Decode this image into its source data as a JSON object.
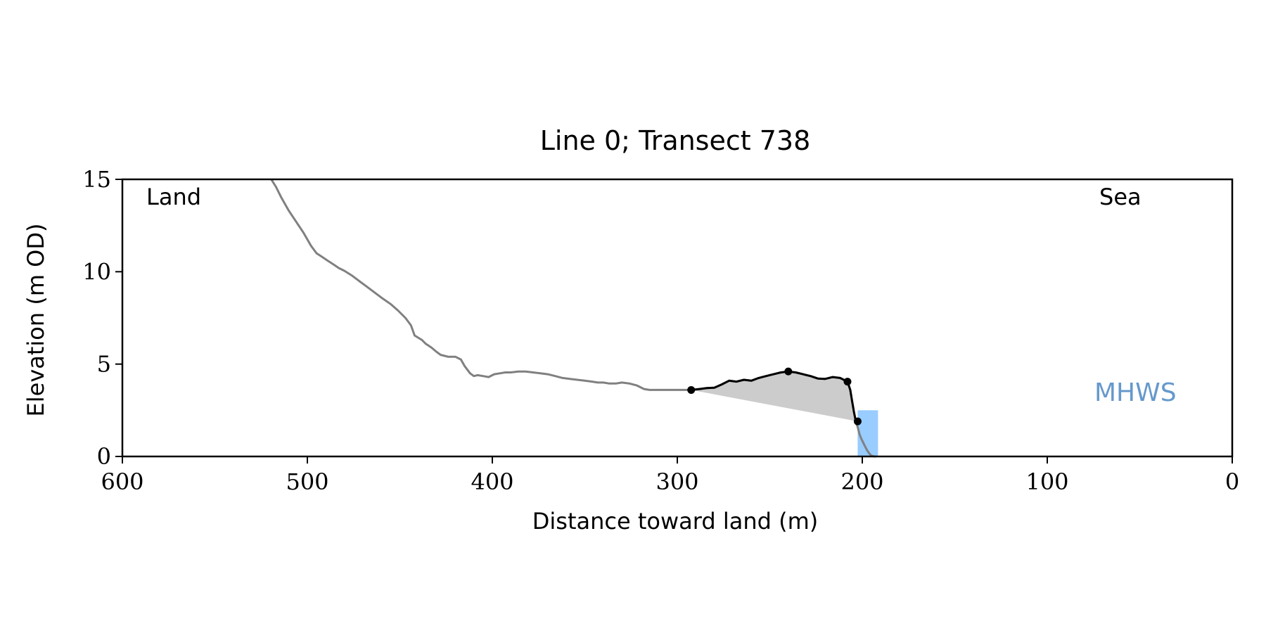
{
  "chart_data": {
    "type": "line",
    "title": "Line 0; Transect 738",
    "xlabel": "Distance toward land (m)",
    "ylabel": "Elevation (m OD)",
    "xlim": [
      600,
      0
    ],
    "ylim": [
      0,
      15
    ],
    "x_ticks": [
      600,
      500,
      400,
      300,
      200,
      100,
      0
    ],
    "y_ticks": [
      0,
      5,
      10,
      15
    ],
    "grid": false,
    "annotations": {
      "land": "Land",
      "sea": "Sea",
      "mhws": "MHWS"
    },
    "colors": {
      "profile": "#808080",
      "dune": "#000000",
      "fill": "#cccccc",
      "mhws_fill": "#99ccff",
      "mhws_text": "#6699cc"
    },
    "mhws_band": {
      "x": [
        202.5,
        191.5
      ],
      "y": [
        0,
        2.5
      ]
    },
    "series": [
      {
        "role": "profile",
        "x": [
          519.5,
          517,
          514,
          510,
          506,
          502,
          498,
          495,
          492,
          489,
          486,
          483,
          480,
          476,
          472,
          468,
          464,
          460,
          455,
          451,
          447,
          444,
          442,
          438,
          436,
          433,
          430,
          428,
          424,
          420,
          417,
          415,
          412,
          410,
          408,
          405,
          402,
          399,
          396,
          393,
          390,
          386,
          382,
          378,
          374,
          370,
          366,
          362,
          358,
          354,
          350,
          346,
          343,
          340,
          337,
          333,
          330,
          326,
          322,
          318,
          315,
          311,
          307,
          303,
          299,
          295,
          292,
          288,
          284,
          280,
          276,
          272,
          268,
          264,
          260,
          256,
          252,
          248,
          244,
          240,
          236,
          232,
          228,
          224,
          220,
          216,
          212,
          208,
          206.5,
          205.5,
          204.5,
          203.5,
          202.5,
          201.5,
          200.5,
          199.5,
          198.5,
          197.5,
          196.5,
          195.5,
          194.5,
          193.5,
          192.5
        ],
        "y": [
          15.0,
          14.6,
          14.0,
          13.3,
          12.7,
          12.1,
          11.4,
          11.0,
          10.8,
          10.6,
          10.4,
          10.2,
          10.05,
          9.8,
          9.5,
          9.2,
          8.9,
          8.6,
          8.25,
          7.9,
          7.5,
          7.1,
          6.55,
          6.3,
          6.1,
          5.9,
          5.65,
          5.5,
          5.4,
          5.4,
          5.25,
          4.9,
          4.5,
          4.35,
          4.4,
          4.35,
          4.3,
          4.45,
          4.5,
          4.55,
          4.55,
          4.6,
          4.6,
          4.55,
          4.5,
          4.45,
          4.35,
          4.25,
          4.2,
          4.15,
          4.1,
          4.05,
          4.0,
          4.0,
          3.95,
          3.95,
          4.0,
          3.95,
          3.85,
          3.65,
          3.6,
          3.6,
          3.6,
          3.6,
          3.6,
          3.6,
          3.6,
          3.65,
          3.7,
          3.72,
          3.9,
          4.1,
          4.05,
          4.15,
          4.1,
          4.25,
          4.35,
          4.45,
          4.55,
          4.6,
          4.55,
          4.45,
          4.35,
          4.22,
          4.2,
          4.3,
          4.25,
          4.05,
          3.6,
          3.0,
          2.4,
          1.9,
          1.6,
          1.2,
          0.95,
          0.75,
          0.55,
          0.35,
          0.2,
          0.08,
          0.02,
          0.0,
          0.0
        ]
      },
      {
        "role": "dune",
        "x": [
          292.5,
          288,
          284,
          280,
          276,
          272,
          268,
          264,
          260,
          256,
          252,
          248,
          244,
          240,
          236,
          232,
          228,
          224,
          220,
          216,
          212,
          208,
          206.5,
          205.5,
          204.5,
          203.5,
          202.5
        ],
        "y": [
          3.6,
          3.65,
          3.7,
          3.72,
          3.9,
          4.1,
          4.05,
          4.15,
          4.1,
          4.25,
          4.35,
          4.45,
          4.55,
          4.6,
          4.55,
          4.45,
          4.35,
          4.22,
          4.2,
          4.3,
          4.25,
          4.05,
          3.6,
          3.0,
          2.4,
          1.9,
          1.9
        ]
      }
    ],
    "markers": {
      "x": [
        292.5,
        240,
        208,
        202.5
      ],
      "y": [
        3.6,
        4.6,
        4.05,
        1.9
      ]
    }
  }
}
